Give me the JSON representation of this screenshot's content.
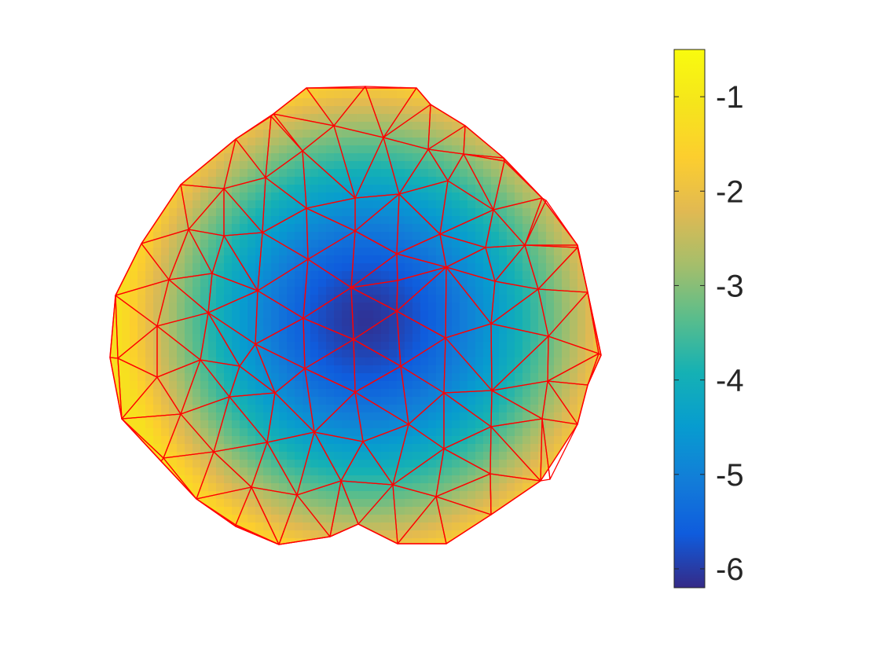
{
  "chart_data": {
    "type": "heatmap",
    "title": "",
    "xlabel": "",
    "ylabel": "",
    "colormap": "parula",
    "mesh_color": "#ff0000",
    "colorbar": {
      "range": [
        -6.2,
        -0.5
      ],
      "ticks": [
        -6,
        -5,
        -4,
        -3,
        -2,
        -1
      ],
      "tick_labels": [
        "-6",
        "-5",
        "-4",
        "-3",
        "-2",
        "-1"
      ]
    },
    "field": {
      "description_values": {
        "minimum": -6.1,
        "maximum": -1.2
      }
    }
  }
}
